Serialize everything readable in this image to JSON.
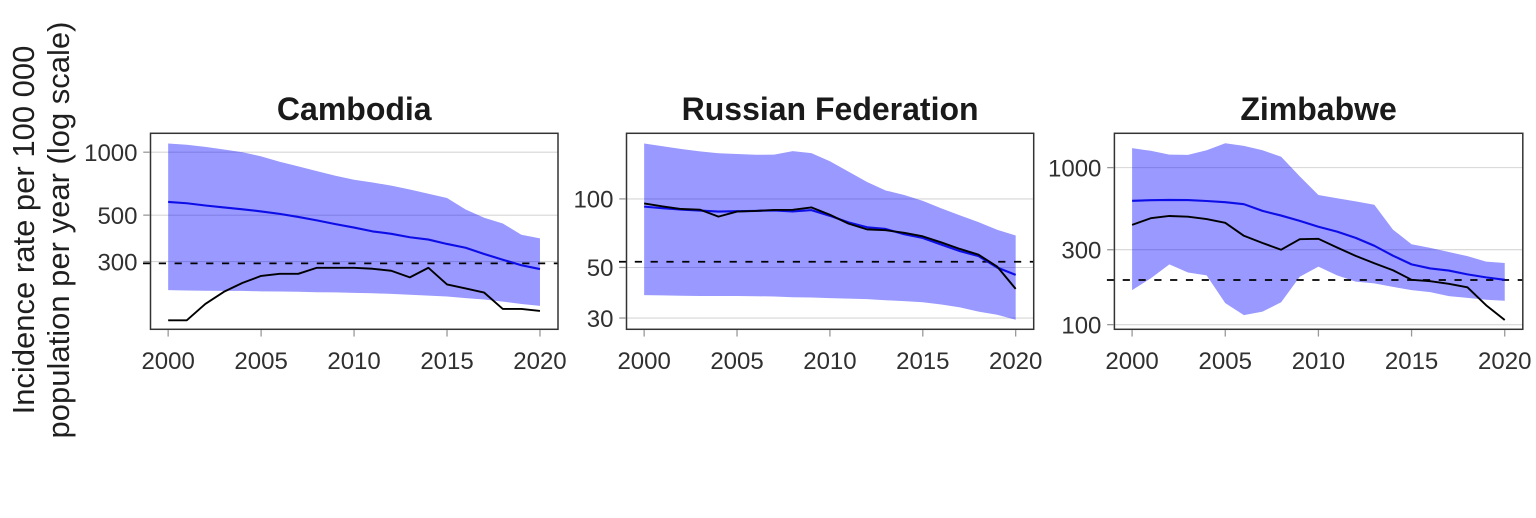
{
  "figure": {
    "y_axis_title_lines": [
      "Incidence rate per 100 000",
      "population per year (log scale)"
    ],
    "colors": {
      "incidence_line": "#0d0de8",
      "uncertainty_band": "#0000ff",
      "uncertainty_band_opacity": 0.4,
      "notification_line": "#000000",
      "dashed_reference_line": "#000000",
      "gridline": "#d6d6d6",
      "panel_border": "#333333",
      "axis_tick": "#999999",
      "tick_label": "#303030",
      "panel_title": "#1a1a1a"
    }
  },
  "chart_data": [
    {
      "type": "line",
      "title": "Cambodia",
      "scale": "log10",
      "grid": "horizontal-major-only",
      "legend": "none",
      "x": [
        2000,
        2001,
        2002,
        2003,
        2004,
        2005,
        2006,
        2007,
        2008,
        2009,
        2010,
        2011,
        2012,
        2013,
        2014,
        2015,
        2016,
        2017,
        2018,
        2019,
        2020
      ],
      "x_ticks": [
        2000,
        2005,
        2010,
        2015,
        2020
      ],
      "xlim": [
        1999.05,
        2020.97
      ],
      "ylim": [
        142.2,
        1231.5
      ],
      "y_breaks": [
        1000,
        500,
        300
      ],
      "series": [
        {
          "name": "estimated-incidence",
          "role": "line-blue",
          "values": [
            578,
            570,
            556,
            544,
            533,
            521,
            507,
            490,
            472,
            453,
            436,
            418,
            407,
            392,
            382,
            364,
            349,
            326,
            306,
            288,
            276
          ]
        },
        {
          "name": "incidence-upper-bound",
          "role": "band-hi",
          "values": [
            1100,
            1085,
            1060,
            1030,
            1000,
            955,
            900,
            855,
            812,
            772,
            738,
            716,
            692,
            663,
            633,
            604,
            532,
            486,
            456,
            403,
            387
          ]
        },
        {
          "name": "incidence-lower-bound",
          "role": "band-lo",
          "values": [
            219,
            218,
            217.5,
            217,
            217,
            216,
            215.5,
            215,
            214,
            213.5,
            212.5,
            211.5,
            210,
            208,
            206,
            204,
            200.5,
            197.5,
            193,
            188,
            184
          ]
        },
        {
          "name": "case-notification-rate",
          "role": "line-black",
          "values": [
            157,
            157,
            188,
            215,
            237,
            256,
            262,
            262,
            280,
            280,
            280,
            277,
            271,
            252,
            280,
            233,
            223,
            213,
            178,
            178,
            174
          ]
        }
      ],
      "dashed_reference_value": 294
    },
    {
      "type": "line",
      "title": "Russian Federation",
      "scale": "log10",
      "grid": "horizontal-major-only",
      "legend": "none",
      "x": [
        2000,
        2001,
        2002,
        2003,
        2004,
        2005,
        2006,
        2007,
        2008,
        2009,
        2010,
        2011,
        2012,
        2013,
        2014,
        2015,
        2016,
        2017,
        2018,
        2019,
        2020
      ],
      "x_ticks": [
        2000,
        2005,
        2010,
        2015,
        2020
      ],
      "xlim": [
        1999.05,
        2020.97
      ],
      "ylim": [
        26.77,
        194.1
      ],
      "y_breaks": [
        100,
        50,
        30
      ],
      "series": [
        {
          "name": "estimated-incidence",
          "role": "line-blue",
          "values": [
            92.5,
            91,
            89.8,
            88.9,
            88,
            88.3,
            88.6,
            89,
            88.1,
            89.3,
            84.3,
            78.9,
            75.1,
            73.8,
            70,
            67.4,
            63,
            59,
            56.1,
            50,
            46.4
          ]
        },
        {
          "name": "incidence-upper-bound",
          "role": "band-hi",
          "values": [
            175,
            170.2,
            165.6,
            161.7,
            158.6,
            157.4,
            156.2,
            156.4,
            162.1,
            158.8,
            146.4,
            131.7,
            118.7,
            108.9,
            104.1,
            98,
            90.9,
            84.7,
            79.1,
            73.2,
            69.1
          ]
        },
        {
          "name": "incidence-lower-bound",
          "role": "band-lo",
          "values": [
            37.8,
            37.7,
            37.6,
            37.5,
            37.5,
            37.5,
            37.4,
            37.3,
            37,
            36.9,
            36.7,
            36.5,
            36.3,
            35.9,
            35.6,
            35.2,
            34.4,
            33.4,
            32,
            31,
            29.5
          ]
        },
        {
          "name": "case-notification-rate",
          "role": "line-black",
          "values": [
            95.5,
            92.7,
            90.3,
            89.7,
            83.6,
            88,
            88.6,
            89.5,
            89.6,
            91.8,
            85.2,
            77.9,
            73.5,
            72.9,
            71,
            68.5,
            64.4,
            60.3,
            56.9,
            50.5,
            40.3
          ]
        }
      ],
      "dashed_reference_value": 53
    },
    {
      "type": "line",
      "title": "Zimbabwe",
      "scale": "log10",
      "grid": "horizontal-major-only",
      "legend": "none",
      "x": [
        2000,
        2001,
        2002,
        2003,
        2004,
        2005,
        2006,
        2007,
        2008,
        2009,
        2010,
        2011,
        2012,
        2013,
        2014,
        2015,
        2016,
        2017,
        2018,
        2019,
        2020
      ],
      "x_ticks": [
        2000,
        2005,
        2010,
        2015,
        2020
      ],
      "xlim": [
        1999.05,
        2020.97
      ],
      "ylim": [
        93.4,
        1654
      ],
      "y_breaks": [
        1000,
        300,
        100
      ],
      "series": [
        {
          "name": "estimated-incidence",
          "role": "line-blue",
          "values": [
            615,
            620,
            623,
            621,
            613,
            602,
            585,
            530,
            495,
            458,
            420,
            391,
            357,
            318,
            275,
            242,
            228,
            221,
            209,
            200,
            193
          ]
        },
        {
          "name": "incidence-upper-bound",
          "role": "band-hi",
          "values": [
            1330,
            1280,
            1210,
            1205,
            1290,
            1430,
            1375,
            1290,
            1172,
            880,
            669,
            638,
            610,
            580,
            403,
            325,
            308,
            290,
            273,
            252,
            247
          ]
        },
        {
          "name": "incidence-lower-bound",
          "role": "band-lo",
          "values": [
            166,
            197,
            242,
            215,
            206,
            137,
            115,
            121,
            139,
            202,
            234,
            206,
            188,
            183,
            174,
            166,
            161,
            152,
            148,
            144,
            142
          ]
        },
        {
          "name": "case-notification-rate",
          "role": "line-black",
          "values": [
            432,
            476,
            492,
            487,
            470,
            445,
            368,
            331,
            300,
            350,
            352,
            310,
            274,
            246,
            222,
            193,
            189,
            182,
            173,
            133,
            107
          ]
        }
      ],
      "dashed_reference_value": 192.5
    }
  ]
}
